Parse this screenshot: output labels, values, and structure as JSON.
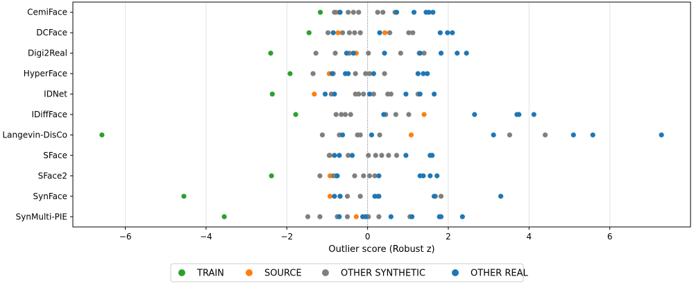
{
  "chart_data": {
    "type": "scatter",
    "title": "",
    "xlabel": "Outlier score (Robust z)",
    "ylabel": "",
    "xlim": [
      -7.3,
      8.0
    ],
    "xticks": [
      -6,
      -4,
      -2,
      0,
      2,
      4,
      6
    ],
    "xtick_labels": [
      "−6",
      "−4",
      "−2",
      "0",
      "2",
      "4",
      "6"
    ],
    "grid": "vertical",
    "zero_line": true,
    "legend_position": "bottom-center",
    "categories": [
      "CemiFace",
      "DCFace",
      "Digi2Real",
      "HyperFace",
      "IDNet",
      "IDiffFace",
      "Langevin-DisCo",
      "SFace",
      "SFace2",
      "SynFace",
      "SynMulti-PIE"
    ],
    "series": [
      {
        "name": "TRAIN",
        "color": "#2ca02c",
        "points": [
          {
            "category": "CemiFace",
            "x": -1.17
          },
          {
            "category": "DCFace",
            "x": -1.45
          },
          {
            "category": "Digi2Real",
            "x": -2.4
          },
          {
            "category": "HyperFace",
            "x": -1.92
          },
          {
            "category": "IDNet",
            "x": -2.36
          },
          {
            "category": "IDiffFace",
            "x": -1.78
          },
          {
            "category": "Langevin-DisCo",
            "x": -6.58
          },
          {
            "category": "SFace2",
            "x": -2.38
          },
          {
            "category": "SynFace",
            "x": -4.55
          },
          {
            "category": "SynMulti-PIE",
            "x": -3.55
          }
        ]
      },
      {
        "name": "SOURCE",
        "color": "#ff7f0e",
        "points": [
          {
            "category": "CemiFace",
            "x": -0.78
          },
          {
            "category": "DCFace",
            "x": -0.73
          },
          {
            "category": "DCFace",
            "x": 0.43
          },
          {
            "category": "Digi2Real",
            "x": -0.28
          },
          {
            "category": "HyperFace",
            "x": -0.95
          },
          {
            "category": "IDNet",
            "x": -1.32
          },
          {
            "category": "IDiffFace",
            "x": 1.4
          },
          {
            "category": "Langevin-DisCo",
            "x": 1.08
          },
          {
            "category": "SFace",
            "x": -0.93
          },
          {
            "category": "SFace2",
            "x": -0.93
          },
          {
            "category": "SynFace",
            "x": -0.93
          },
          {
            "category": "SynMulti-PIE",
            "x": -0.28
          }
        ]
      },
      {
        "name": "OTHER SYNTHETIC",
        "color": "#7f7f7f",
        "points": [
          {
            "category": "CemiFace",
            "x": -0.82
          },
          {
            "category": "CemiFace",
            "x": -0.7
          },
          {
            "category": "CemiFace",
            "x": -0.48
          },
          {
            "category": "CemiFace",
            "x": -0.35
          },
          {
            "category": "CemiFace",
            "x": -0.22
          },
          {
            "category": "CemiFace",
            "x": 0.25
          },
          {
            "category": "CemiFace",
            "x": 0.38
          },
          {
            "category": "CemiFace",
            "x": 0.68
          },
          {
            "category": "DCFace",
            "x": -0.98
          },
          {
            "category": "DCFace",
            "x": -0.62
          },
          {
            "category": "DCFace",
            "x": -0.45
          },
          {
            "category": "DCFace",
            "x": -0.32
          },
          {
            "category": "DCFace",
            "x": -0.18
          },
          {
            "category": "DCFace",
            "x": 0.55
          },
          {
            "category": "DCFace",
            "x": 1.02
          },
          {
            "category": "DCFace",
            "x": 1.12
          },
          {
            "category": "Digi2Real",
            "x": -1.28
          },
          {
            "category": "Digi2Real",
            "x": -0.8
          },
          {
            "category": "Digi2Real",
            "x": -0.45
          },
          {
            "category": "Digi2Real",
            "x": 0.02
          },
          {
            "category": "Digi2Real",
            "x": 0.82
          },
          {
            "category": "Digi2Real",
            "x": 1.28
          },
          {
            "category": "Digi2Real",
            "x": 1.4
          },
          {
            "category": "HyperFace",
            "x": -1.35
          },
          {
            "category": "HyperFace",
            "x": -0.85
          },
          {
            "category": "HyperFace",
            "x": -0.3
          },
          {
            "category": "HyperFace",
            "x": -0.05
          },
          {
            "category": "HyperFace",
            "x": 0.05
          },
          {
            "category": "HyperFace",
            "x": 0.42
          },
          {
            "category": "IDNet",
            "x": -0.9
          },
          {
            "category": "IDNet",
            "x": -0.3
          },
          {
            "category": "IDNet",
            "x": -0.22
          },
          {
            "category": "IDNet",
            "x": -0.1
          },
          {
            "category": "IDNet",
            "x": 0.15
          },
          {
            "category": "IDNet",
            "x": 0.5
          },
          {
            "category": "IDNet",
            "x": 0.58
          },
          {
            "category": "IDNet",
            "x": 1.25
          },
          {
            "category": "IDiffFace",
            "x": -0.78
          },
          {
            "category": "IDiffFace",
            "x": -0.65
          },
          {
            "category": "IDiffFace",
            "x": -0.55
          },
          {
            "category": "IDiffFace",
            "x": -0.42
          },
          {
            "category": "IDiffFace",
            "x": 0.45
          },
          {
            "category": "IDiffFace",
            "x": 0.7
          },
          {
            "category": "IDiffFace",
            "x": 1.02
          },
          {
            "category": "Langevin-DisCo",
            "x": -1.12
          },
          {
            "category": "Langevin-DisCo",
            "x": -0.7
          },
          {
            "category": "Langevin-DisCo",
            "x": -0.25
          },
          {
            "category": "Langevin-DisCo",
            "x": -0.18
          },
          {
            "category": "Langevin-DisCo",
            "x": 0.3
          },
          {
            "category": "Langevin-DisCo",
            "x": 3.52
          },
          {
            "category": "Langevin-DisCo",
            "x": 4.4
          },
          {
            "category": "SFace",
            "x": -0.95
          },
          {
            "category": "SFace",
            "x": -0.48
          },
          {
            "category": "SFace",
            "x": 0.02
          },
          {
            "category": "SFace",
            "x": 0.2
          },
          {
            "category": "SFace",
            "x": 0.35
          },
          {
            "category": "SFace",
            "x": 0.52
          },
          {
            "category": "SFace",
            "x": 0.72
          },
          {
            "category": "SFace2",
            "x": -1.18
          },
          {
            "category": "SFace2",
            "x": -0.85
          },
          {
            "category": "SFace2",
            "x": -0.78
          },
          {
            "category": "SFace2",
            "x": -0.32
          },
          {
            "category": "SFace2",
            "x": -0.1
          },
          {
            "category": "SFace2",
            "x": 0.05
          },
          {
            "category": "SFace2",
            "x": 0.18
          },
          {
            "category": "SynFace",
            "x": -0.68
          },
          {
            "category": "SynFace",
            "x": -0.5
          },
          {
            "category": "SynFace",
            "x": -0.18
          },
          {
            "category": "SynFace",
            "x": 0.25
          },
          {
            "category": "SynFace",
            "x": 1.68
          },
          {
            "category": "SynFace",
            "x": 1.82
          },
          {
            "category": "SynMulti-PIE",
            "x": -1.48
          },
          {
            "category": "SynMulti-PIE",
            "x": -1.18
          },
          {
            "category": "SynMulti-PIE",
            "x": -0.75
          },
          {
            "category": "SynMulti-PIE",
            "x": -0.5
          },
          {
            "category": "SynMulti-PIE",
            "x": 0.02
          },
          {
            "category": "SynMulti-PIE",
            "x": 0.28
          },
          {
            "category": "SynMulti-PIE",
            "x": 1.05
          }
        ]
      },
      {
        "name": "OTHER REAL",
        "color": "#1f77b4",
        "points": [
          {
            "category": "CemiFace",
            "x": -0.68
          },
          {
            "category": "CemiFace",
            "x": 0.72
          },
          {
            "category": "CemiFace",
            "x": 1.15
          },
          {
            "category": "CemiFace",
            "x": 1.45
          },
          {
            "category": "CemiFace",
            "x": 1.52
          },
          {
            "category": "CemiFace",
            "x": 1.62
          },
          {
            "category": "DCFace",
            "x": -0.85
          },
          {
            "category": "DCFace",
            "x": 0.3
          },
          {
            "category": "DCFace",
            "x": 1.8
          },
          {
            "category": "DCFace",
            "x": 1.98
          },
          {
            "category": "DCFace",
            "x": 2.1
          },
          {
            "category": "Digi2Real",
            "x": -0.52
          },
          {
            "category": "Digi2Real",
            "x": -0.35
          },
          {
            "category": "Digi2Real",
            "x": 0.42
          },
          {
            "category": "Digi2Real",
            "x": 1.3
          },
          {
            "category": "Digi2Real",
            "x": 1.82
          },
          {
            "category": "Digi2Real",
            "x": 2.22
          },
          {
            "category": "Digi2Real",
            "x": 2.45
          },
          {
            "category": "HyperFace",
            "x": -0.88
          },
          {
            "category": "HyperFace",
            "x": -0.55
          },
          {
            "category": "HyperFace",
            "x": -0.48
          },
          {
            "category": "HyperFace",
            "x": 0.15
          },
          {
            "category": "HyperFace",
            "x": 1.25
          },
          {
            "category": "HyperFace",
            "x": 1.38
          },
          {
            "category": "HyperFace",
            "x": 1.48
          },
          {
            "category": "IDNet",
            "x": -1.05
          },
          {
            "category": "IDNet",
            "x": -0.82
          },
          {
            "category": "IDNet",
            "x": 0.05
          },
          {
            "category": "IDNet",
            "x": 0.95
          },
          {
            "category": "IDNet",
            "x": 1.3
          },
          {
            "category": "IDNet",
            "x": 1.65
          },
          {
            "category": "IDiffFace",
            "x": 0.4
          },
          {
            "category": "IDiffFace",
            "x": 2.65
          },
          {
            "category": "IDiffFace",
            "x": 3.7
          },
          {
            "category": "IDiffFace",
            "x": 3.75
          },
          {
            "category": "IDiffFace",
            "x": 4.12
          },
          {
            "category": "Langevin-DisCo",
            "x": -0.62
          },
          {
            "category": "Langevin-DisCo",
            "x": 0.1
          },
          {
            "category": "Langevin-DisCo",
            "x": 3.12
          },
          {
            "category": "Langevin-DisCo",
            "x": 5.1
          },
          {
            "category": "Langevin-DisCo",
            "x": 5.58
          },
          {
            "category": "Langevin-DisCo",
            "x": 7.28
          },
          {
            "category": "SFace",
            "x": -0.82
          },
          {
            "category": "SFace",
            "x": -0.7
          },
          {
            "category": "SFace",
            "x": -0.38
          },
          {
            "category": "SFace",
            "x": 0.95
          },
          {
            "category": "SFace",
            "x": 1.55
          },
          {
            "category": "SFace",
            "x": 1.6
          },
          {
            "category": "SFace2",
            "x": -0.75
          },
          {
            "category": "SFace2",
            "x": 0.28
          },
          {
            "category": "SFace2",
            "x": 1.3
          },
          {
            "category": "SFace2",
            "x": 1.38
          },
          {
            "category": "SFace2",
            "x": 1.55
          },
          {
            "category": "SFace2",
            "x": 1.72
          },
          {
            "category": "SynFace",
            "x": -0.82
          },
          {
            "category": "SynFace",
            "x": -0.68
          },
          {
            "category": "SynFace",
            "x": 0.18
          },
          {
            "category": "SynFace",
            "x": 0.28
          },
          {
            "category": "SynFace",
            "x": 1.65
          },
          {
            "category": "SynFace",
            "x": 3.3
          },
          {
            "category": "SynMulti-PIE",
            "x": -0.7
          },
          {
            "category": "SynMulti-PIE",
            "x": -0.12
          },
          {
            "category": "SynMulti-PIE",
            "x": -0.05
          },
          {
            "category": "SynMulti-PIE",
            "x": 0.58
          },
          {
            "category": "SynMulti-PIE",
            "x": 1.1
          },
          {
            "category": "SynMulti-PIE",
            "x": 1.78
          },
          {
            "category": "SynMulti-PIE",
            "x": 1.82
          },
          {
            "category": "SynMulti-PIE",
            "x": 2.35
          }
        ]
      }
    ]
  }
}
